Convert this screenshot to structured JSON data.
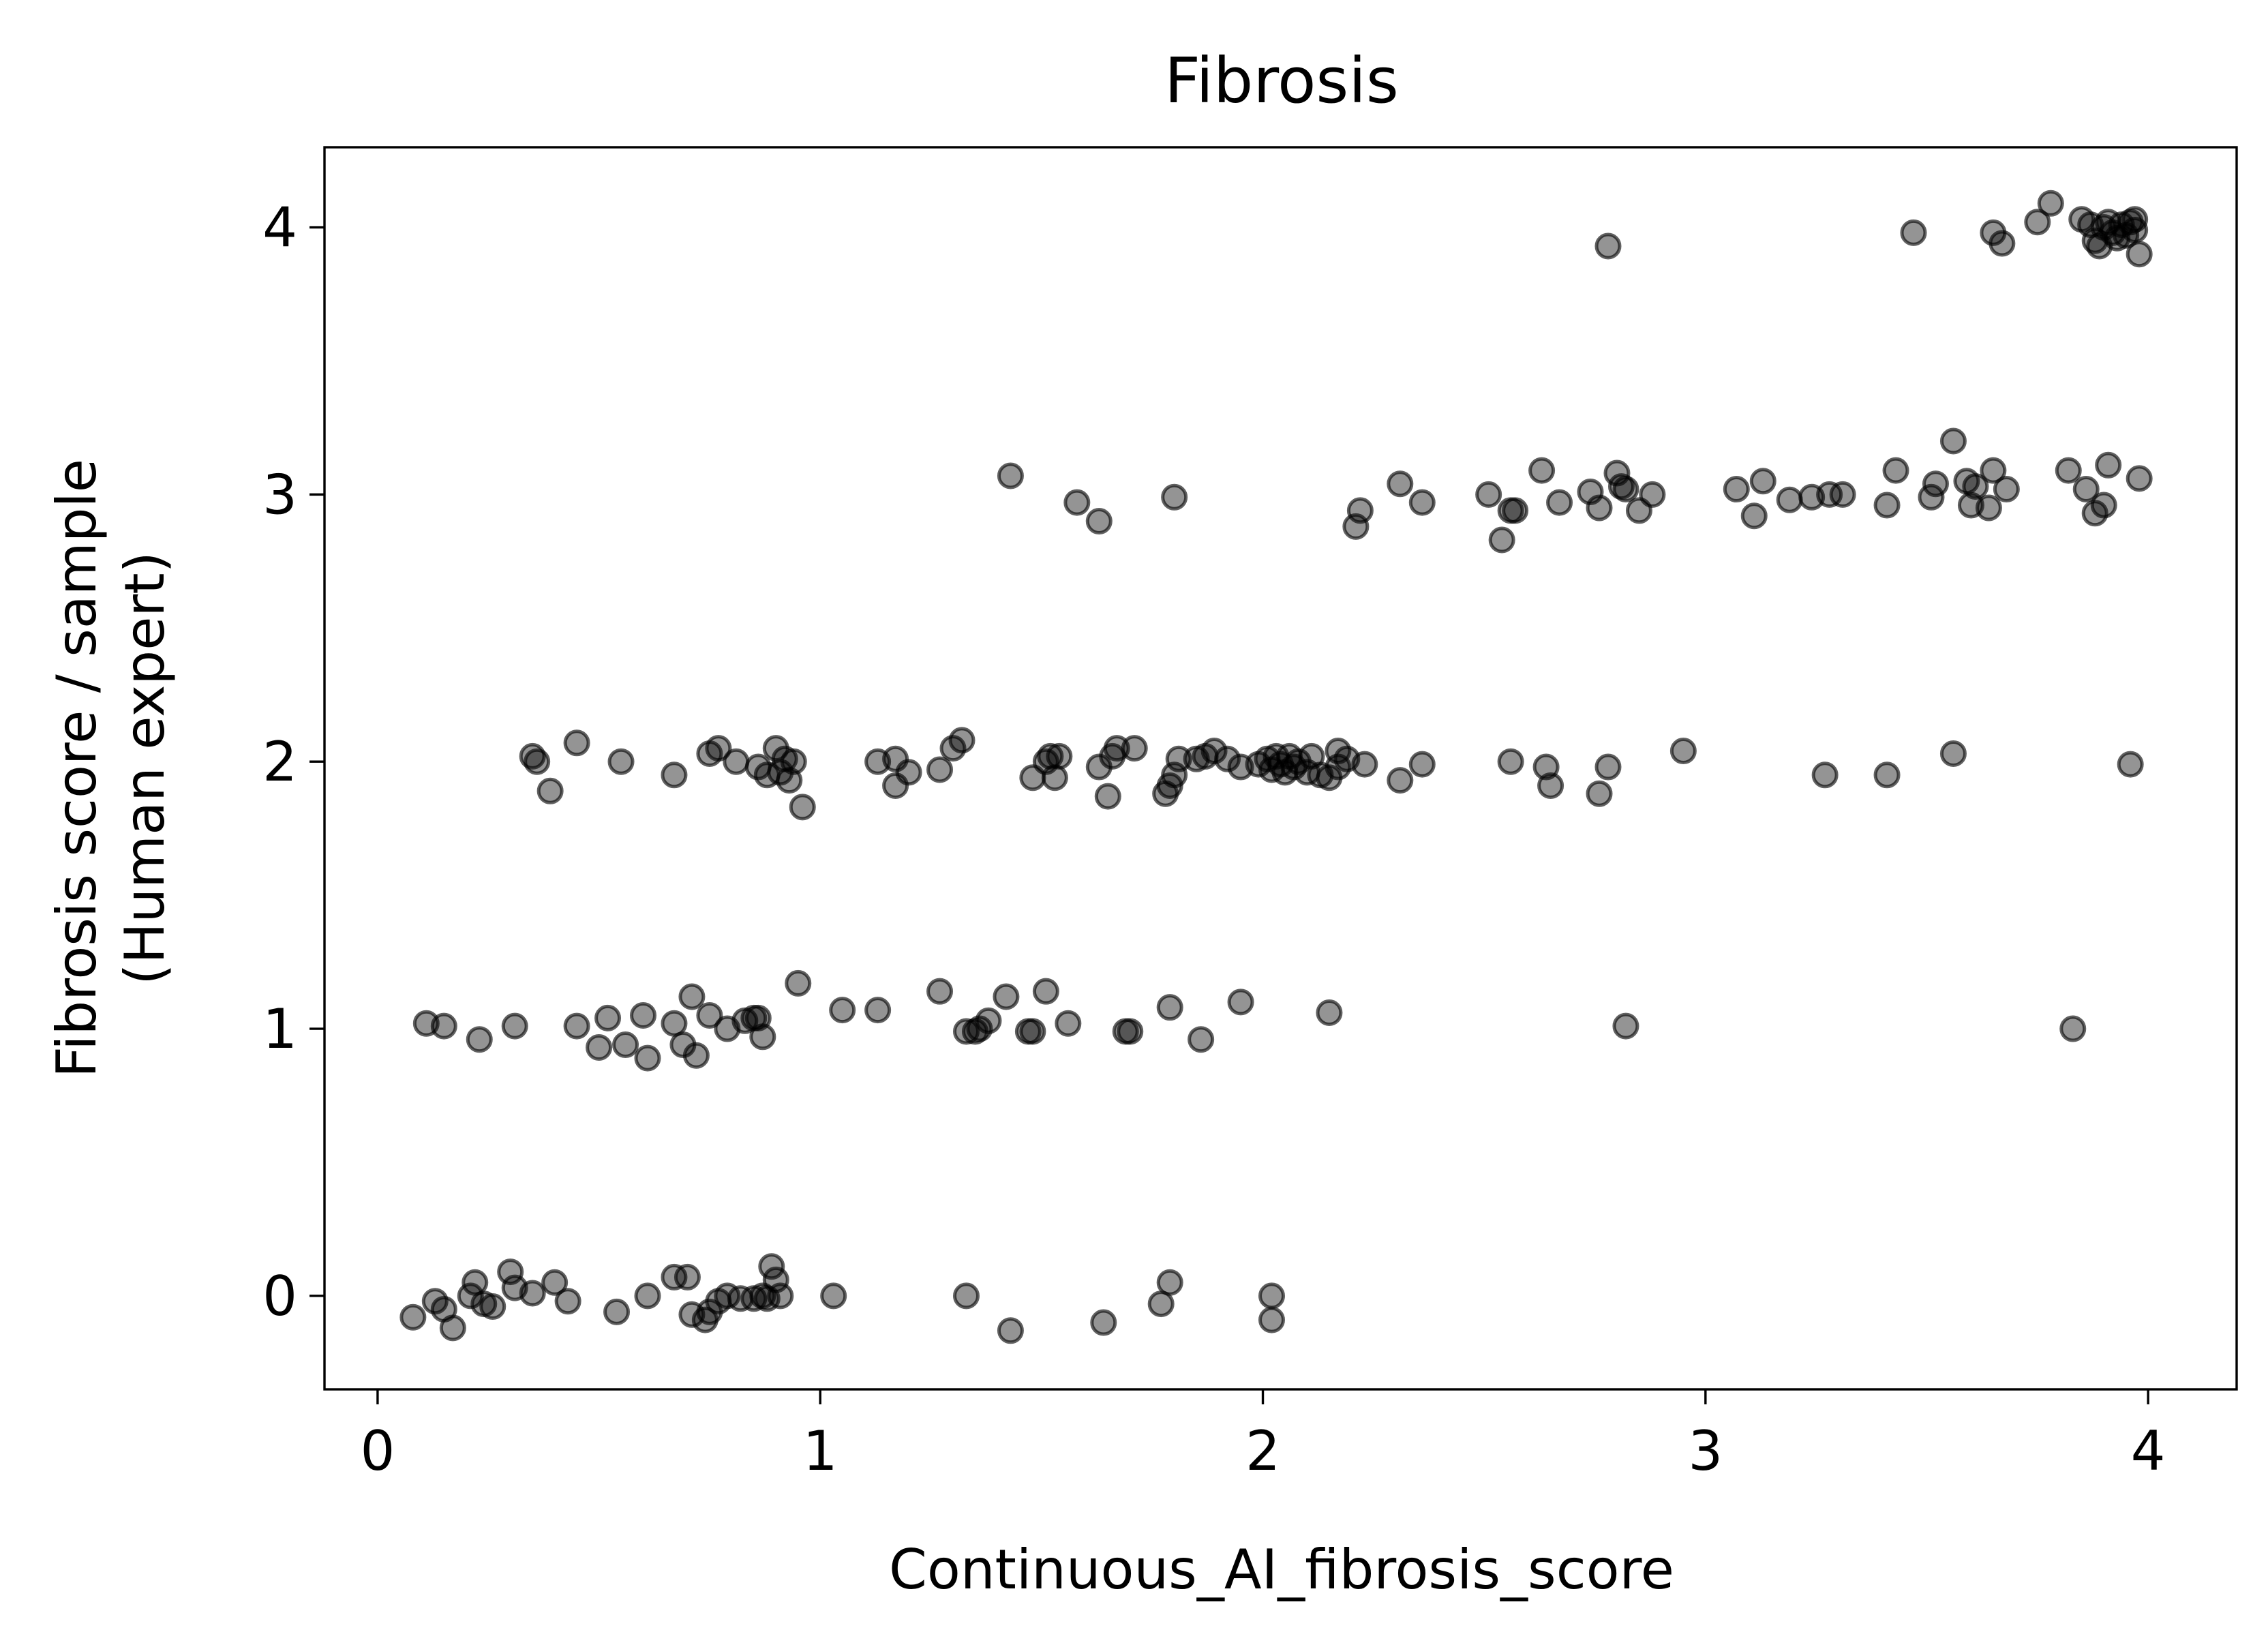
{
  "chart_data": {
    "type": "scatter",
    "title": "Fibrosis",
    "xlabel": "Continuous_AI_fibrosis_score",
    "ylabel_lines": [
      "Fibrosis score / sample",
      "(Human expert)"
    ],
    "xlim": [
      -0.12,
      4.2
    ],
    "ylim": [
      -0.35,
      4.3
    ],
    "xticks": [
      0,
      1,
      2,
      3,
      4
    ],
    "yticks": [
      0,
      1,
      2,
      3,
      4
    ],
    "grid": false,
    "marker_color": "#000000",
    "marker_alpha": 0.42,
    "points": [
      [
        0.08,
        -0.08
      ],
      [
        0.13,
        -0.02
      ],
      [
        0.15,
        -0.05
      ],
      [
        0.17,
        -0.12
      ],
      [
        0.21,
        0.0
      ],
      [
        0.22,
        0.05
      ],
      [
        0.24,
        -0.03
      ],
      [
        0.26,
        -0.04
      ],
      [
        0.3,
        0.09
      ],
      [
        0.31,
        0.03
      ],
      [
        0.35,
        0.01
      ],
      [
        0.4,
        0.05
      ],
      [
        0.43,
        -0.02
      ],
      [
        0.54,
        -0.06
      ],
      [
        0.61,
        0.0
      ],
      [
        0.67,
        0.07
      ],
      [
        0.7,
        0.07
      ],
      [
        0.71,
        -0.07
      ],
      [
        0.74,
        -0.09
      ],
      [
        0.75,
        -0.06
      ],
      [
        0.77,
        -0.02
      ],
      [
        0.79,
        0.0
      ],
      [
        0.82,
        -0.01
      ],
      [
        0.85,
        -0.01
      ],
      [
        0.87,
        0.0
      ],
      [
        0.88,
        -0.01
      ],
      [
        0.89,
        0.11
      ],
      [
        0.9,
        0.06
      ],
      [
        0.91,
        0.0
      ],
      [
        1.03,
        0.0
      ],
      [
        1.33,
        0.0
      ],
      [
        1.43,
        -0.13
      ],
      [
        1.64,
        -0.1
      ],
      [
        1.77,
        -0.03
      ],
      [
        1.79,
        0.05
      ],
      [
        2.02,
        0.0
      ],
      [
        2.02,
        -0.09
      ],
      [
        0.11,
        1.02
      ],
      [
        0.15,
        1.01
      ],
      [
        0.23,
        0.96
      ],
      [
        0.31,
        1.01
      ],
      [
        0.45,
        1.01
      ],
      [
        0.5,
        0.93
      ],
      [
        0.52,
        1.04
      ],
      [
        0.56,
        0.94
      ],
      [
        0.6,
        1.05
      ],
      [
        0.61,
        0.89
      ],
      [
        0.67,
        1.02
      ],
      [
        0.69,
        0.94
      ],
      [
        0.71,
        1.12
      ],
      [
        0.72,
        0.9
      ],
      [
        0.75,
        1.05
      ],
      [
        0.79,
        1.0
      ],
      [
        0.83,
        1.03
      ],
      [
        0.85,
        1.04
      ],
      [
        0.86,
        1.04
      ],
      [
        0.87,
        0.97
      ],
      [
        0.95,
        1.17
      ],
      [
        1.05,
        1.07
      ],
      [
        1.13,
        1.07
      ],
      [
        1.27,
        1.14
      ],
      [
        1.33,
        0.99
      ],
      [
        1.35,
        0.99
      ],
      [
        1.36,
        1.0
      ],
      [
        1.38,
        1.03
      ],
      [
        1.42,
        1.12
      ],
      [
        1.47,
        0.99
      ],
      [
        1.48,
        0.99
      ],
      [
        1.51,
        1.14
      ],
      [
        1.56,
        1.02
      ],
      [
        1.69,
        0.99
      ],
      [
        1.7,
        0.99
      ],
      [
        1.79,
        1.08
      ],
      [
        1.86,
        0.96
      ],
      [
        1.95,
        1.1
      ],
      [
        2.15,
        1.06
      ],
      [
        2.82,
        1.01
      ],
      [
        3.83,
        1.0
      ],
      [
        0.35,
        2.02
      ],
      [
        0.36,
        2.0
      ],
      [
        0.39,
        1.89
      ],
      [
        0.45,
        2.07
      ],
      [
        0.55,
        2.0
      ],
      [
        0.67,
        1.95
      ],
      [
        0.75,
        2.03
      ],
      [
        0.77,
        2.05
      ],
      [
        0.81,
        2.0
      ],
      [
        0.86,
        1.98
      ],
      [
        0.88,
        1.95
      ],
      [
        0.9,
        2.05
      ],
      [
        0.91,
        1.96
      ],
      [
        0.92,
        2.01
      ],
      [
        0.93,
        1.93
      ],
      [
        0.94,
        2.0
      ],
      [
        0.96,
        1.83
      ],
      [
        1.13,
        2.0
      ],
      [
        1.17,
        2.01
      ],
      [
        1.17,
        1.91
      ],
      [
        1.2,
        1.96
      ],
      [
        1.27,
        1.97
      ],
      [
        1.3,
        2.05
      ],
      [
        1.32,
        2.08
      ],
      [
        1.48,
        1.94
      ],
      [
        1.51,
        2.0
      ],
      [
        1.52,
        2.02
      ],
      [
        1.53,
        1.94
      ],
      [
        1.54,
        2.02
      ],
      [
        1.63,
        1.98
      ],
      [
        1.65,
        1.87
      ],
      [
        1.66,
        2.02
      ],
      [
        1.67,
        2.05
      ],
      [
        1.71,
        2.05
      ],
      [
        1.78,
        1.88
      ],
      [
        1.79,
        1.91
      ],
      [
        1.8,
        1.95
      ],
      [
        1.81,
        2.01
      ],
      [
        1.85,
        2.01
      ],
      [
        1.87,
        2.02
      ],
      [
        1.89,
        2.04
      ],
      [
        1.92,
        2.01
      ],
      [
        1.95,
        1.98
      ],
      [
        1.99,
        1.99
      ],
      [
        2.01,
        2.01
      ],
      [
        2.02,
        1.97
      ],
      [
        2.03,
        2.02
      ],
      [
        2.04,
        1.99
      ],
      [
        2.05,
        1.96
      ],
      [
        2.06,
        2.02
      ],
      [
        2.07,
        1.98
      ],
      [
        2.08,
        2.0
      ],
      [
        2.1,
        1.96
      ],
      [
        2.11,
        2.02
      ],
      [
        2.13,
        1.95
      ],
      [
        2.15,
        1.94
      ],
      [
        2.17,
        1.98
      ],
      [
        2.17,
        2.04
      ],
      [
        2.19,
        2.01
      ],
      [
        2.23,
        1.99
      ],
      [
        2.31,
        1.93
      ],
      [
        2.36,
        1.99
      ],
      [
        2.56,
        2.0
      ],
      [
        2.64,
        1.98
      ],
      [
        2.65,
        1.91
      ],
      [
        2.76,
        1.88
      ],
      [
        2.78,
        1.98
      ],
      [
        2.95,
        2.04
      ],
      [
        3.27,
        1.95
      ],
      [
        3.41,
        1.95
      ],
      [
        3.56,
        2.03
      ],
      [
        3.96,
        1.99
      ],
      [
        1.43,
        3.07
      ],
      [
        1.58,
        2.97
      ],
      [
        1.63,
        2.9
      ],
      [
        1.8,
        2.99
      ],
      [
        2.21,
        2.88
      ],
      [
        2.22,
        2.94
      ],
      [
        2.31,
        3.04
      ],
      [
        2.36,
        2.97
      ],
      [
        2.51,
        3.0
      ],
      [
        2.54,
        2.83
      ],
      [
        2.56,
        2.94
      ],
      [
        2.57,
        2.94
      ],
      [
        2.63,
        3.09
      ],
      [
        2.67,
        2.97
      ],
      [
        2.74,
        3.01
      ],
      [
        2.76,
        2.95
      ],
      [
        2.8,
        3.08
      ],
      [
        2.81,
        3.03
      ],
      [
        2.82,
        3.02
      ],
      [
        2.85,
        2.94
      ],
      [
        2.88,
        3.0
      ],
      [
        3.07,
        3.02
      ],
      [
        3.11,
        2.92
      ],
      [
        3.13,
        3.05
      ],
      [
        3.19,
        2.98
      ],
      [
        3.24,
        2.99
      ],
      [
        3.28,
        3.0
      ],
      [
        3.31,
        3.0
      ],
      [
        3.41,
        2.96
      ],
      [
        3.43,
        3.09
      ],
      [
        3.51,
        2.99
      ],
      [
        3.52,
        3.04
      ],
      [
        3.56,
        3.2
      ],
      [
        3.59,
        3.05
      ],
      [
        3.6,
        2.96
      ],
      [
        3.61,
        3.03
      ],
      [
        3.64,
        2.95
      ],
      [
        3.65,
        3.09
      ],
      [
        3.68,
        3.02
      ],
      [
        3.82,
        3.09
      ],
      [
        3.86,
        3.02
      ],
      [
        3.88,
        2.93
      ],
      [
        3.9,
        2.96
      ],
      [
        3.91,
        3.11
      ],
      [
        3.98,
        3.06
      ],
      [
        2.78,
        3.93
      ],
      [
        3.47,
        3.98
      ],
      [
        3.65,
        3.98
      ],
      [
        3.67,
        3.94
      ],
      [
        3.75,
        4.02
      ],
      [
        3.78,
        4.09
      ],
      [
        3.85,
        4.03
      ],
      [
        3.87,
        4.01
      ],
      [
        3.88,
        3.95
      ],
      [
        3.89,
        3.93
      ],
      [
        3.9,
        4.0
      ],
      [
        3.91,
        4.02
      ],
      [
        3.92,
        3.98
      ],
      [
        3.93,
        3.96
      ],
      [
        3.94,
        4.01
      ],
      [
        3.95,
        3.97
      ],
      [
        3.96,
        4.02
      ],
      [
        3.97,
        4.03
      ],
      [
        3.97,
        3.99
      ],
      [
        3.98,
        3.9
      ]
    ]
  }
}
